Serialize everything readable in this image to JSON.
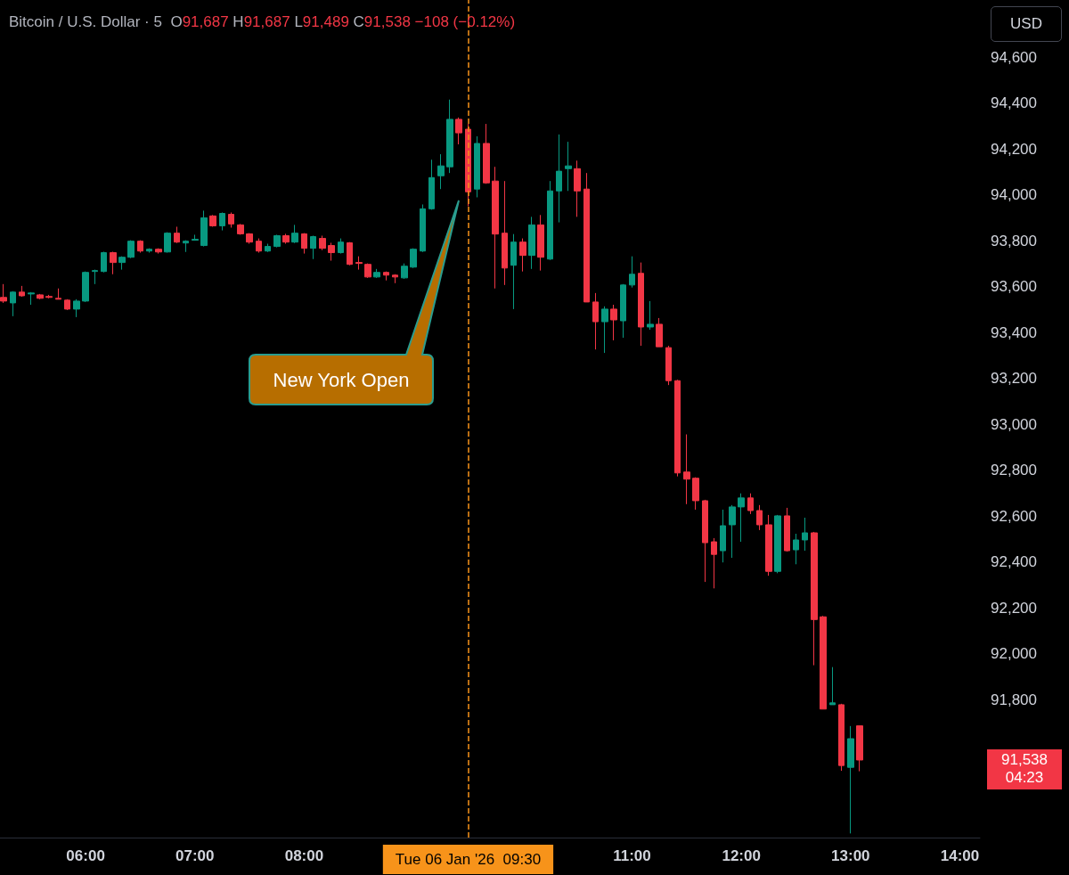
{
  "chart_data": {
    "type": "candlestick",
    "title": "Bitcoin / U.S. Dollar · 5",
    "subtitle": "O91,687 H91,687 L91,489 C91,538 −108 (−0.12%)",
    "x": [
      "2026-01-06T05:15",
      "2026-01-06T05:20",
      "2026-01-06T05:25",
      "2026-01-06T05:30",
      "2026-01-06T05:35",
      "2026-01-06T05:40",
      "2026-01-06T05:45",
      "2026-01-06T05:50",
      "2026-01-06T05:55",
      "2026-01-06T06:00",
      "2026-01-06T06:05",
      "2026-01-06T06:10",
      "2026-01-06T06:15",
      "2026-01-06T06:20",
      "2026-01-06T06:25",
      "2026-01-06T06:30",
      "2026-01-06T06:35",
      "2026-01-06T06:40",
      "2026-01-06T06:45",
      "2026-01-06T06:50",
      "2026-01-06T06:55",
      "2026-01-06T07:00",
      "2026-01-06T07:05",
      "2026-01-06T07:10",
      "2026-01-06T07:15",
      "2026-01-06T07:20",
      "2026-01-06T07:25",
      "2026-01-06T07:30",
      "2026-01-06T07:35",
      "2026-01-06T07:40",
      "2026-01-06T07:45",
      "2026-01-06T07:50",
      "2026-01-06T07:55",
      "2026-01-06T08:00",
      "2026-01-06T08:05",
      "2026-01-06T08:10",
      "2026-01-06T08:15",
      "2026-01-06T08:20",
      "2026-01-06T08:25",
      "2026-01-06T08:30",
      "2026-01-06T08:35",
      "2026-01-06T08:40",
      "2026-01-06T08:45",
      "2026-01-06T08:50",
      "2026-01-06T08:55",
      "2026-01-06T09:00",
      "2026-01-06T09:05",
      "2026-01-06T09:10",
      "2026-01-06T09:15",
      "2026-01-06T09:20",
      "2026-01-06T09:25",
      "2026-01-06T09:30",
      "2026-01-06T09:35",
      "2026-01-06T09:40",
      "2026-01-06T09:45",
      "2026-01-06T09:50",
      "2026-01-06T09:55",
      "2026-01-06T10:00",
      "2026-01-06T10:05",
      "2026-01-06T10:10",
      "2026-01-06T10:15",
      "2026-01-06T10:20",
      "2026-01-06T10:25",
      "2026-01-06T10:30",
      "2026-01-06T10:35",
      "2026-01-06T10:40",
      "2026-01-06T10:45",
      "2026-01-06T10:50",
      "2026-01-06T10:55",
      "2026-01-06T11:00",
      "2026-01-06T11:05",
      "2026-01-06T11:10",
      "2026-01-06T11:15",
      "2026-01-06T11:20",
      "2026-01-06T11:25",
      "2026-01-06T11:30",
      "2026-01-06T11:35",
      "2026-01-06T11:40",
      "2026-01-06T11:45",
      "2026-01-06T11:50",
      "2026-01-06T11:55",
      "2026-01-06T12:00",
      "2026-01-06T12:05",
      "2026-01-06T12:10",
      "2026-01-06T12:15",
      "2026-01-06T12:20",
      "2026-01-06T12:25",
      "2026-01-06T12:30",
      "2026-01-06T12:35",
      "2026-01-06T12:40",
      "2026-01-06T12:45",
      "2026-01-06T12:50",
      "2026-01-06T12:55",
      "2026-01-06T13:00",
      "2026-01-06T13:05"
    ],
    "ohlc": [
      [
        93554,
        93612,
        93530,
        93538
      ],
      [
        93530,
        93581,
        93472,
        93577
      ],
      [
        93577,
        93604,
        93557,
        93561
      ],
      [
        93569,
        93577,
        93522,
        93573
      ],
      [
        93565,
        93569,
        93546,
        93550
      ],
      [
        93558,
        93565,
        93550,
        93554
      ],
      [
        93550,
        93593,
        93546,
        93546
      ],
      [
        93542,
        93546,
        93499,
        93503
      ],
      [
        93503,
        93546,
        93468,
        93538
      ],
      [
        93538,
        93667,
        93534,
        93663
      ],
      [
        93667,
        93675,
        93612,
        93671
      ],
      [
        93667,
        93753,
        93663,
        93749
      ],
      [
        93749,
        93753,
        93655,
        93706
      ],
      [
        93706,
        93733,
        93675,
        93729
      ],
      [
        93729,
        93803,
        93725,
        93799
      ],
      [
        93799,
        93803,
        93749,
        93756
      ],
      [
        93756,
        93768,
        93749,
        93764
      ],
      [
        93764,
        93768,
        93745,
        93752
      ],
      [
        93752,
        93838,
        93749,
        93834
      ],
      [
        93834,
        93862,
        93791,
        93795
      ],
      [
        93791,
        93803,
        93752,
        93799
      ],
      [
        93803,
        93827,
        93803,
        93807
      ],
      [
        93780,
        93932,
        93776,
        93901
      ],
      [
        93909,
        93913,
        93862,
        93866
      ],
      [
        93866,
        93924,
        93846,
        93920
      ],
      [
        93916,
        93924,
        93858,
        93874
      ],
      [
        93870,
        93874,
        93827,
        93831
      ],
      [
        93831,
        93834,
        93788,
        93795
      ],
      [
        93799,
        93811,
        93749,
        93756
      ],
      [
        93756,
        93788,
        93752,
        93776
      ],
      [
        93776,
        93827,
        93772,
        93823
      ],
      [
        93823,
        93831,
        93788,
        93795
      ],
      [
        93795,
        93870,
        93791,
        93834
      ],
      [
        93831,
        93834,
        93745,
        93768
      ],
      [
        93768,
        93823,
        93721,
        93819
      ],
      [
        93811,
        93823,
        93760,
        93768
      ],
      [
        93780,
        93792,
        93714,
        93749
      ],
      [
        93749,
        93811,
        93745,
        93795
      ],
      [
        93792,
        93795,
        93694,
        93698
      ],
      [
        93706,
        93733,
        93675,
        93702
      ],
      [
        93698,
        93702,
        93639,
        93643
      ],
      [
        93643,
        93678,
        93639,
        93663
      ],
      [
        93663,
        93667,
        93628,
        93651
      ],
      [
        93651,
        93655,
        93616,
        93643
      ],
      [
        93639,
        93702,
        93635,
        93690
      ],
      [
        93686,
        93768,
        93682,
        93764
      ],
      [
        93756,
        93959,
        93752,
        93940
      ],
      [
        93940,
        94154,
        93936,
        94076
      ],
      [
        94084,
        94178,
        94026,
        94127
      ],
      [
        94123,
        94416,
        94096,
        94330
      ],
      [
        94330,
        94338,
        94221,
        94271
      ],
      [
        94287,
        94310,
        93951,
        94014
      ],
      [
        94026,
        94256,
        93990,
        94225
      ],
      [
        94225,
        94310,
        94049,
        94053
      ],
      [
        94061,
        94123,
        93593,
        93830
      ],
      [
        93834,
        94061,
        93608,
        93682
      ],
      [
        93694,
        93830,
        93503,
        93795
      ],
      [
        93795,
        93811,
        93667,
        93737
      ],
      [
        93737,
        93905,
        93678,
        93870
      ],
      [
        93870,
        93913,
        93671,
        93729
      ],
      [
        93721,
        94061,
        93717,
        94018
      ],
      [
        94018,
        94264,
        93881,
        94104
      ],
      [
        94115,
        94232,
        94018,
        94127
      ],
      [
        94115,
        94150,
        93905,
        94018
      ],
      [
        94026,
        94096,
        93534,
        93534
      ],
      [
        93534,
        93573,
        93327,
        93448
      ],
      [
        93448,
        93515,
        93312,
        93503
      ],
      [
        93503,
        93522,
        93367,
        93456
      ],
      [
        93452,
        93612,
        93378,
        93608
      ],
      [
        93608,
        93733,
        93597,
        93655
      ],
      [
        93659,
        93706,
        93343,
        93425
      ],
      [
        93425,
        93538,
        93413,
        93437
      ],
      [
        93437,
        93464,
        93339,
        93339
      ],
      [
        93335,
        93343,
        93172,
        93191
      ],
      [
        93191,
        93195,
        92774,
        92789
      ],
      [
        92793,
        92957,
        92653,
        92762
      ],
      [
        92766,
        92770,
        92629,
        92668
      ],
      [
        92668,
        92672,
        92314,
        92485
      ],
      [
        92489,
        92505,
        92286,
        92434
      ],
      [
        92450,
        92629,
        92399,
        92559
      ],
      [
        92563,
        92649,
        92419,
        92641
      ],
      [
        92641,
        92700,
        92489,
        92680
      ],
      [
        92680,
        92700,
        92610,
        92625
      ],
      [
        92625,
        92649,
        92540,
        92563
      ],
      [
        92563,
        92606,
        92341,
        92360
      ],
      [
        92360,
        92606,
        92352,
        92602
      ],
      [
        92602,
        92637,
        92446,
        92450
      ],
      [
        92454,
        92524,
        92391,
        92497
      ],
      [
        92497,
        92594,
        92450,
        92528
      ],
      [
        92528,
        92532,
        91951,
        92150
      ],
      [
        92162,
        92166,
        91760,
        91760
      ],
      [
        91779,
        91943,
        91779,
        91787
      ],
      [
        91779,
        91783,
        91491,
        91514
      ],
      [
        91506,
        91686,
        91218,
        91631
      ],
      [
        91687,
        91687,
        91489,
        91538
      ]
    ],
    "colors": [
      "#f23645",
      "#089981",
      "#f23645",
      "#089981",
      "#f23645",
      "#f23645",
      "#f23645",
      "#f23645",
      "#089981",
      "#089981",
      "#089981",
      "#089981",
      "#f23645",
      "#089981",
      "#089981",
      "#f23645",
      "#089981",
      "#f23645",
      "#089981",
      "#f23645",
      "#089981",
      "#089981",
      "#089981",
      "#f23645",
      "#089981",
      "#f23645",
      "#f23645",
      "#f23645",
      "#f23645",
      "#089981",
      "#089981",
      "#f23645",
      "#089981",
      "#f23645",
      "#089981",
      "#f23645",
      "#f23645",
      "#089981",
      "#f23645",
      "#f23645",
      "#f23645",
      "#089981",
      "#f23645",
      "#f23645",
      "#089981",
      "#089981",
      "#089981",
      "#089981",
      "#089981",
      "#089981",
      "#f23645",
      "#f23645",
      "#089981",
      "#f23645",
      "#f23645",
      "#f23645",
      "#089981",
      "#f23645",
      "#089981",
      "#f23645",
      "#089981",
      "#089981",
      "#089981",
      "#f23645",
      "#f23645",
      "#f23645",
      "#089981",
      "#f23645",
      "#089981",
      "#089981",
      "#f23645",
      "#089981",
      "#f23645",
      "#f23645",
      "#f23645",
      "#f23645",
      "#f23645",
      "#f23645",
      "#f23645",
      "#089981",
      "#089981",
      "#089981",
      "#f23645",
      "#f23645",
      "#f23645",
      "#089981",
      "#f23645",
      "#089981",
      "#089981",
      "#f23645",
      "#f23645",
      "#089981",
      "#f23645",
      "#089981",
      "#f23645"
    ],
    "xlim": [
      "2026-01-06T05:13",
      "2026-01-06T14:11"
    ],
    "xticks": [
      {
        "value": "2026-01-06T06:00",
        "label": "06:00"
      },
      {
        "value": "2026-01-06T07:00",
        "label": "07:00"
      },
      {
        "value": "2026-01-06T08:00",
        "label": "08:00"
      },
      {
        "value": "2026-01-06T11:00",
        "label": "11:00"
      },
      {
        "value": "2026-01-06T12:00",
        "label": "12:00"
      },
      {
        "value": "2026-01-06T13:00",
        "label": "13:00"
      },
      {
        "value": "2026-01-06T14:00",
        "label": "14:00"
      }
    ],
    "ylim": [
      91200,
      94850
    ],
    "yticks": [
      {
        "value": 91800,
        "label": "91,800"
      },
      {
        "value": 92000,
        "label": "92,000"
      },
      {
        "value": 92200,
        "label": "92,200"
      },
      {
        "value": 92400,
        "label": "92,400"
      },
      {
        "value": 92600,
        "label": "92,600"
      },
      {
        "value": 92800,
        "label": "92,800"
      },
      {
        "value": 93000,
        "label": "93,000"
      },
      {
        "value": 93200,
        "label": "93,200"
      },
      {
        "value": 93400,
        "label": "93,400"
      },
      {
        "value": 93600,
        "label": "93,600"
      },
      {
        "value": 93800,
        "label": "93,800"
      },
      {
        "value": 94000,
        "label": "94,000"
      },
      {
        "value": 94200,
        "label": "94,200"
      },
      {
        "value": 94400,
        "label": "94,400"
      },
      {
        "value": 94600,
        "label": "94,600"
      }
    ],
    "ref_lines": [
      {
        "axis": "x",
        "value": "2026-01-06T09:30",
        "label": "Tue 06 Jan '26  09:30",
        "color": "#f7931a",
        "line_style": "dashed"
      }
    ],
    "annotations": [
      "New York Open",
      "USD",
      "91,538",
      "04:23"
    ],
    "grid": false
  }
}
